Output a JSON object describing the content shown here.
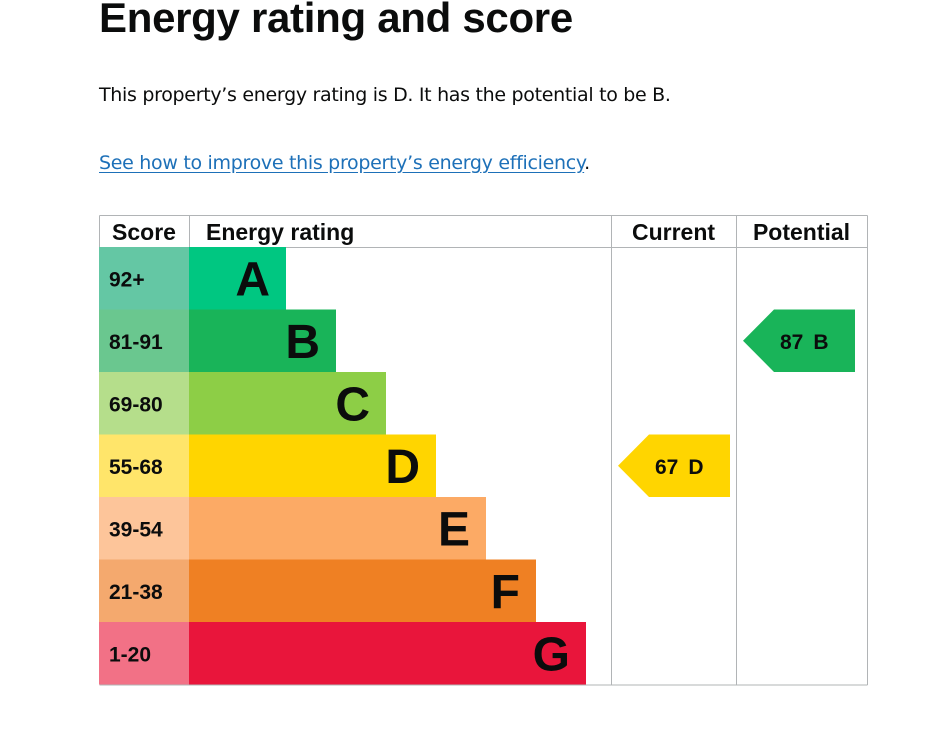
{
  "heading": "Energy rating and score",
  "intro": "This property’s energy rating is D. It has the potential to be B.",
  "improve_link": "See how to improve this property’s energy efficiency",
  "improve_link_suffix": ".",
  "chart_data": {
    "type": "bar",
    "columns": [
      "Score",
      "Energy rating",
      "Current",
      "Potential"
    ],
    "bands": [
      {
        "band": "A",
        "range": "92+",
        "color": "#00c781",
        "score_color": "#64c7a4"
      },
      {
        "band": "B",
        "range": "81-91",
        "color": "#19b459",
        "score_color": "#6ac78f"
      },
      {
        "band": "C",
        "range": "69-80",
        "color": "#8dce46",
        "score_color": "#b5de8b"
      },
      {
        "band": "D",
        "range": "55-68",
        "color": "#ffd500",
        "score_color": "#ffe56a"
      },
      {
        "band": "E",
        "range": "39-54",
        "color": "#fcaa65",
        "score_color": "#fdc59a"
      },
      {
        "band": "F",
        "range": "21-38",
        "color": "#ef8023",
        "score_color": "#f4a96e"
      },
      {
        "band": "G",
        "range": "1-20",
        "color": "#e9153b",
        "score_color": "#f27186"
      }
    ],
    "current": {
      "score": 67,
      "band": "D"
    },
    "potential": {
      "score": 87,
      "band": "B"
    }
  }
}
